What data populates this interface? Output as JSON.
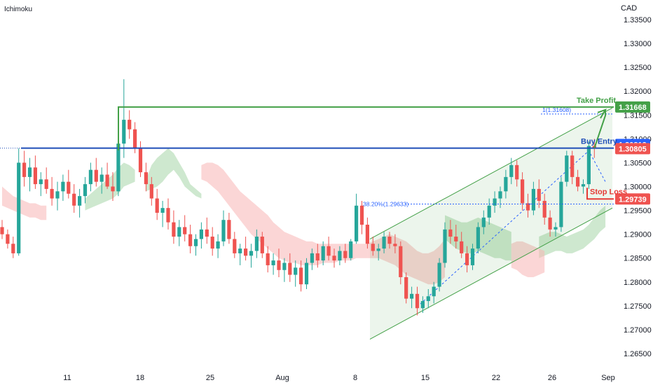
{
  "indicator_label": "Ichimoku",
  "currency": "CAD",
  "colors": {
    "up": "#26a69a",
    "down": "#ef5350",
    "cloud_green": "#a5d6a7",
    "cloud_red": "#f8b4b4",
    "channel": "#43a047",
    "blue_line": "#1e4db7",
    "take_profit": "#43a047",
    "stop_loss": "#e53935",
    "fib": "#2962ff",
    "axis_text": "#131722"
  },
  "chart_data": {
    "type": "candlestick",
    "symbol_currency": "CAD",
    "ylim": [
      1.2625,
      1.3375
    ],
    "price_ticks": [
      "1.33500",
      "1.33000",
      "1.32500",
      "1.32000",
      "1.31500",
      "1.31000",
      "1.30500",
      "1.30000",
      "1.29500",
      "1.29000",
      "1.28500",
      "1.28000",
      "1.27500",
      "1.27000",
      "1.26500"
    ],
    "x_tick_labels": [
      "11",
      "18",
      "25",
      "Aug",
      "8",
      "15",
      "22",
      "26",
      "Sep"
    ],
    "annotations": {
      "take_profit": {
        "label": "Take Profit",
        "price": "1.31668"
      },
      "buy_entry": {
        "label": "Buy Entry",
        "price": "1.30805"
      },
      "current_price": {
        "price": "1.30812"
      },
      "stop_loss": {
        "label": "Stop Loss",
        "price": "1.29739"
      },
      "fib_1": {
        "label": "1(1.31608)",
        "value": 1.31608
      },
      "fib_382": {
        "label": "38.20%(1.29633)",
        "value": 1.29633
      }
    },
    "candles": [
      [
        1.2915,
        1.293,
        1.289,
        1.29
      ],
      [
        1.29,
        1.291,
        1.287,
        1.288
      ],
      [
        1.288,
        1.2895,
        1.285,
        1.286
      ],
      [
        1.286,
        1.308,
        1.2855,
        1.305
      ],
      [
        1.305,
        1.3075,
        1.3,
        1.302
      ],
      [
        1.302,
        1.306,
        1.299,
        1.304
      ],
      [
        1.304,
        1.3065,
        1.2995,
        1.3005
      ],
      [
        1.3005,
        1.303,
        1.298,
        1.3015
      ],
      [
        1.3015,
        1.304,
        1.2985,
        1.2995
      ],
      [
        1.2995,
        1.302,
        1.296,
        1.2975
      ],
      [
        1.2975,
        1.301,
        1.295,
        1.299
      ],
      [
        1.299,
        1.3025,
        1.297,
        1.301
      ],
      [
        1.301,
        1.3035,
        1.2975,
        1.2985
      ],
      [
        1.2985,
        1.3005,
        1.2945,
        1.296
      ],
      [
        1.296,
        1.2995,
        1.2935,
        1.298
      ],
      [
        1.298,
        1.302,
        1.2965,
        1.3005
      ],
      [
        1.3005,
        1.305,
        1.299,
        1.3035
      ],
      [
        1.3035,
        1.306,
        1.3,
        1.301
      ],
      [
        1.301,
        1.304,
        1.2985,
        1.3025
      ],
      [
        1.3025,
        1.305,
        1.2995,
        1.3
      ],
      [
        1.3,
        1.303,
        1.297,
        1.299
      ],
      [
        1.299,
        1.311,
        1.298,
        1.309
      ],
      [
        1.309,
        1.3225,
        1.306,
        1.314
      ],
      [
        1.314,
        1.316,
        1.31,
        1.312
      ],
      [
        1.312,
        1.3135,
        1.307,
        1.308
      ],
      [
        1.308,
        1.3095,
        1.302,
        1.303
      ],
      [
        1.303,
        1.305,
        1.299,
        1.3005
      ],
      [
        1.3005,
        1.302,
        1.296,
        1.2975
      ],
      [
        1.2975,
        1.2995,
        1.293,
        1.2945
      ],
      [
        1.2945,
        1.297,
        1.2915,
        1.2955
      ],
      [
        1.2955,
        1.2975,
        1.291,
        1.2925
      ],
      [
        1.2925,
        1.295,
        1.288,
        1.2895
      ],
      [
        1.2895,
        1.293,
        1.2875,
        1.2915
      ],
      [
        1.2915,
        1.294,
        1.2885,
        1.29
      ],
      [
        1.29,
        1.292,
        1.286,
        1.2875
      ],
      [
        1.2875,
        1.29,
        1.2855,
        1.289
      ],
      [
        1.289,
        1.2925,
        1.287,
        1.291
      ],
      [
        1.291,
        1.2935,
        1.288,
        1.2895
      ],
      [
        1.2895,
        1.2915,
        1.2855,
        1.287
      ],
      [
        1.287,
        1.29,
        1.285,
        1.2885
      ],
      [
        1.2885,
        1.295,
        1.2875,
        1.293
      ],
      [
        1.293,
        1.2945,
        1.288,
        1.289
      ],
      [
        1.289,
        1.2905,
        1.285,
        1.286
      ],
      [
        1.286,
        1.288,
        1.2835,
        1.287
      ],
      [
        1.287,
        1.2895,
        1.2845,
        1.2855
      ],
      [
        1.2855,
        1.288,
        1.283,
        1.2865
      ],
      [
        1.2865,
        1.291,
        1.285,
        1.2895
      ],
      [
        1.2895,
        1.2905,
        1.285,
        1.286
      ],
      [
        1.286,
        1.2875,
        1.282,
        1.2835
      ],
      [
        1.2835,
        1.286,
        1.2815,
        1.2845
      ],
      [
        1.2845,
        1.287,
        1.281,
        1.2825
      ],
      [
        1.2825,
        1.285,
        1.28,
        1.284
      ],
      [
        1.284,
        1.286,
        1.28,
        1.2815
      ],
      [
        1.2815,
        1.2845,
        1.279,
        1.283
      ],
      [
        1.283,
        1.2845,
        1.278,
        1.2795
      ],
      [
        1.2795,
        1.285,
        1.2785,
        1.284
      ],
      [
        1.284,
        1.287,
        1.2825,
        1.286
      ],
      [
        1.286,
        1.288,
        1.283,
        1.2845
      ],
      [
        1.2845,
        1.2885,
        1.2835,
        1.2875
      ],
      [
        1.2875,
        1.2895,
        1.2845,
        1.2855
      ],
      [
        1.2855,
        1.287,
        1.283,
        1.2845
      ],
      [
        1.2845,
        1.2875,
        1.2835,
        1.2865
      ],
      [
        1.2865,
        1.288,
        1.284,
        1.285
      ],
      [
        1.285,
        1.289,
        1.2845,
        1.2885
      ],
      [
        1.2885,
        1.2985,
        1.288,
        1.296
      ],
      [
        1.296,
        1.297,
        1.29,
        1.292
      ],
      [
        1.292,
        1.2935,
        1.287,
        1.288
      ],
      [
        1.288,
        1.2895,
        1.2855,
        1.2865
      ],
      [
        1.2865,
        1.288,
        1.2845,
        1.287
      ],
      [
        1.287,
        1.2905,
        1.286,
        1.2895
      ],
      [
        1.2895,
        1.2905,
        1.287,
        1.288
      ],
      [
        1.288,
        1.29,
        1.286,
        1.2875
      ],
      [
        1.2875,
        1.2885,
        1.2795,
        1.281
      ],
      [
        1.281,
        1.282,
        1.2755,
        1.2765
      ],
      [
        1.2765,
        1.279,
        1.2745,
        1.2775
      ],
      [
        1.2775,
        1.279,
        1.273,
        1.2745
      ],
      [
        1.2745,
        1.277,
        1.2735,
        1.276
      ],
      [
        1.276,
        1.2785,
        1.2745,
        1.277
      ],
      [
        1.277,
        1.28,
        1.2755,
        1.279
      ],
      [
        1.279,
        1.285,
        1.278,
        1.284
      ],
      [
        1.284,
        1.2925,
        1.283,
        1.291
      ],
      [
        1.291,
        1.293,
        1.288,
        1.2895
      ],
      [
        1.2895,
        1.292,
        1.287,
        1.2885
      ],
      [
        1.2885,
        1.2905,
        1.285,
        1.286
      ],
      [
        1.286,
        1.2875,
        1.282,
        1.2835
      ],
      [
        1.2835,
        1.288,
        1.2825,
        1.287
      ],
      [
        1.287,
        1.2925,
        1.286,
        1.2915
      ],
      [
        1.2915,
        1.295,
        1.29,
        1.2935
      ],
      [
        1.2935,
        1.2975,
        1.292,
        1.296
      ],
      [
        1.296,
        1.299,
        1.2945,
        1.2975
      ],
      [
        1.2975,
        1.3,
        1.2955,
        1.299
      ],
      [
        1.299,
        1.3035,
        1.2975,
        1.302
      ],
      [
        1.302,
        1.306,
        1.3005,
        1.3045
      ],
      [
        1.3045,
        1.3055,
        1.3,
        1.3015
      ],
      [
        1.3015,
        1.303,
        1.295,
        1.2965
      ],
      [
        1.2965,
        1.2985,
        1.2935,
        1.295
      ],
      [
        1.295,
        1.301,
        1.294,
        1.2995
      ],
      [
        1.2995,
        1.3015,
        1.2955,
        1.297
      ],
      [
        1.297,
        1.2985,
        1.292,
        1.2935
      ],
      [
        1.2935,
        1.295,
        1.2895,
        1.291
      ],
      [
        1.291,
        1.2925,
        1.2895,
        1.2915
      ],
      [
        1.2915,
        1.302,
        1.2905,
        1.301
      ],
      [
        1.301,
        1.3075,
        1.3,
        1.3065
      ],
      [
        1.3065,
        1.3075,
        1.3005,
        1.302
      ],
      [
        1.302,
        1.3035,
        1.299,
        1.3
      ],
      [
        1.3,
        1.3015,
        1.2985,
        1.3005
      ],
      [
        1.3005,
        1.3095,
        1.2995,
        1.3085
      ],
      [
        1.3085,
        1.31,
        1.306,
        1.308
      ]
    ],
    "cloud_green_segments": [
      {
        "from": 15,
        "to": 24,
        "top": [
          1.2975,
          1.2985,
          1.2995,
          1.3005,
          1.3015,
          1.3025,
          1.304,
          1.305,
          1.3045,
          1.3035
        ],
        "bot": [
          1.295,
          1.2955,
          1.296,
          1.2965,
          1.297,
          1.2975,
          1.2985,
          1.3,
          1.3005,
          1.301
        ]
      },
      {
        "from": 26,
        "to": 36,
        "top": [
          1.3015,
          1.3045,
          1.306,
          1.307,
          1.308,
          1.307,
          1.305,
          1.303,
          1.3005,
          1.2995,
          1.2985
        ],
        "bot": [
          1.299,
          1.2995,
          1.3,
          1.301,
          1.3025,
          1.3035,
          1.302,
          1.3,
          1.299,
          1.298,
          1.2975
        ]
      },
      {
        "from": 80,
        "to": 92,
        "top": [
          1.294,
          1.2935,
          1.293,
          1.2925,
          1.2925,
          1.293,
          1.2935,
          1.293,
          1.2925,
          1.292,
          1.2915,
          1.291,
          1.2905
        ],
        "bot": [
          1.289,
          1.288,
          1.287,
          1.2865,
          1.286,
          1.286,
          1.2865,
          1.286,
          1.2855,
          1.285,
          1.285,
          1.2845,
          1.2845
        ]
      },
      {
        "from": 97,
        "to": 109,
        "top": [
          1.2895,
          1.29,
          1.2905,
          1.2905,
          1.29,
          1.2895,
          1.29,
          1.2905,
          1.291,
          1.292,
          1.2935,
          1.295,
          1.296
        ],
        "bot": [
          1.285,
          1.2855,
          1.286,
          1.2865,
          1.2865,
          1.286,
          1.286,
          1.2865,
          1.287,
          1.288,
          1.289,
          1.2905,
          1.2915
        ]
      }
    ],
    "cloud_red_segments": [
      {
        "from": 0,
        "to": 8,
        "top": [
          1.3,
          1.299,
          1.298,
          1.2975,
          1.297,
          1.2965,
          1.2965,
          1.296,
          1.296
        ],
        "bot": [
          1.296,
          1.2955,
          1.295,
          1.2945,
          1.294,
          1.2935,
          1.2935,
          1.293,
          1.293
        ]
      },
      {
        "from": 36,
        "to": 66,
        "top": [
          1.3045,
          1.305,
          1.305,
          1.3045,
          1.3035,
          1.302,
          1.3005,
          1.299,
          1.298,
          1.297,
          1.296,
          1.295,
          1.294,
          1.2925,
          1.2915,
          1.2905,
          1.29,
          1.2895,
          1.289,
          1.2885,
          1.2885,
          1.288,
          1.288,
          1.288,
          1.288,
          1.288,
          1.288,
          1.288,
          1.288,
          1.288,
          1.288
        ],
        "bot": [
          1.3015,
          1.301,
          1.3,
          1.299,
          1.2975,
          1.296,
          1.2945,
          1.293,
          1.2915,
          1.29,
          1.289,
          1.288,
          1.287,
          1.286,
          1.285,
          1.2845,
          1.284,
          1.284,
          1.2835,
          1.2835,
          1.2835,
          1.2835,
          1.284,
          1.284,
          1.284,
          1.2845,
          1.2845,
          1.2845,
          1.285,
          1.285,
          1.285
        ]
      },
      {
        "from": 66,
        "to": 80,
        "top": [
          1.288,
          1.2885,
          1.289,
          1.2895,
          1.29,
          1.2895,
          1.289,
          1.2885,
          1.2875,
          1.2865,
          1.286,
          1.286,
          1.2865,
          1.2875,
          1.289
        ],
        "bot": [
          1.285,
          1.285,
          1.285,
          1.2845,
          1.284,
          1.2835,
          1.2825,
          1.2815,
          1.281,
          1.2805,
          1.28,
          1.2795,
          1.2795,
          1.28,
          1.281
        ]
      },
      {
        "from": 92,
        "to": 98,
        "top": [
          1.288,
          1.2885,
          1.2885,
          1.288,
          1.2875,
          1.287,
          1.2865
        ],
        "bot": [
          1.283,
          1.2825,
          1.2815,
          1.281,
          1.281,
          1.2815,
          1.282
        ]
      }
    ]
  }
}
